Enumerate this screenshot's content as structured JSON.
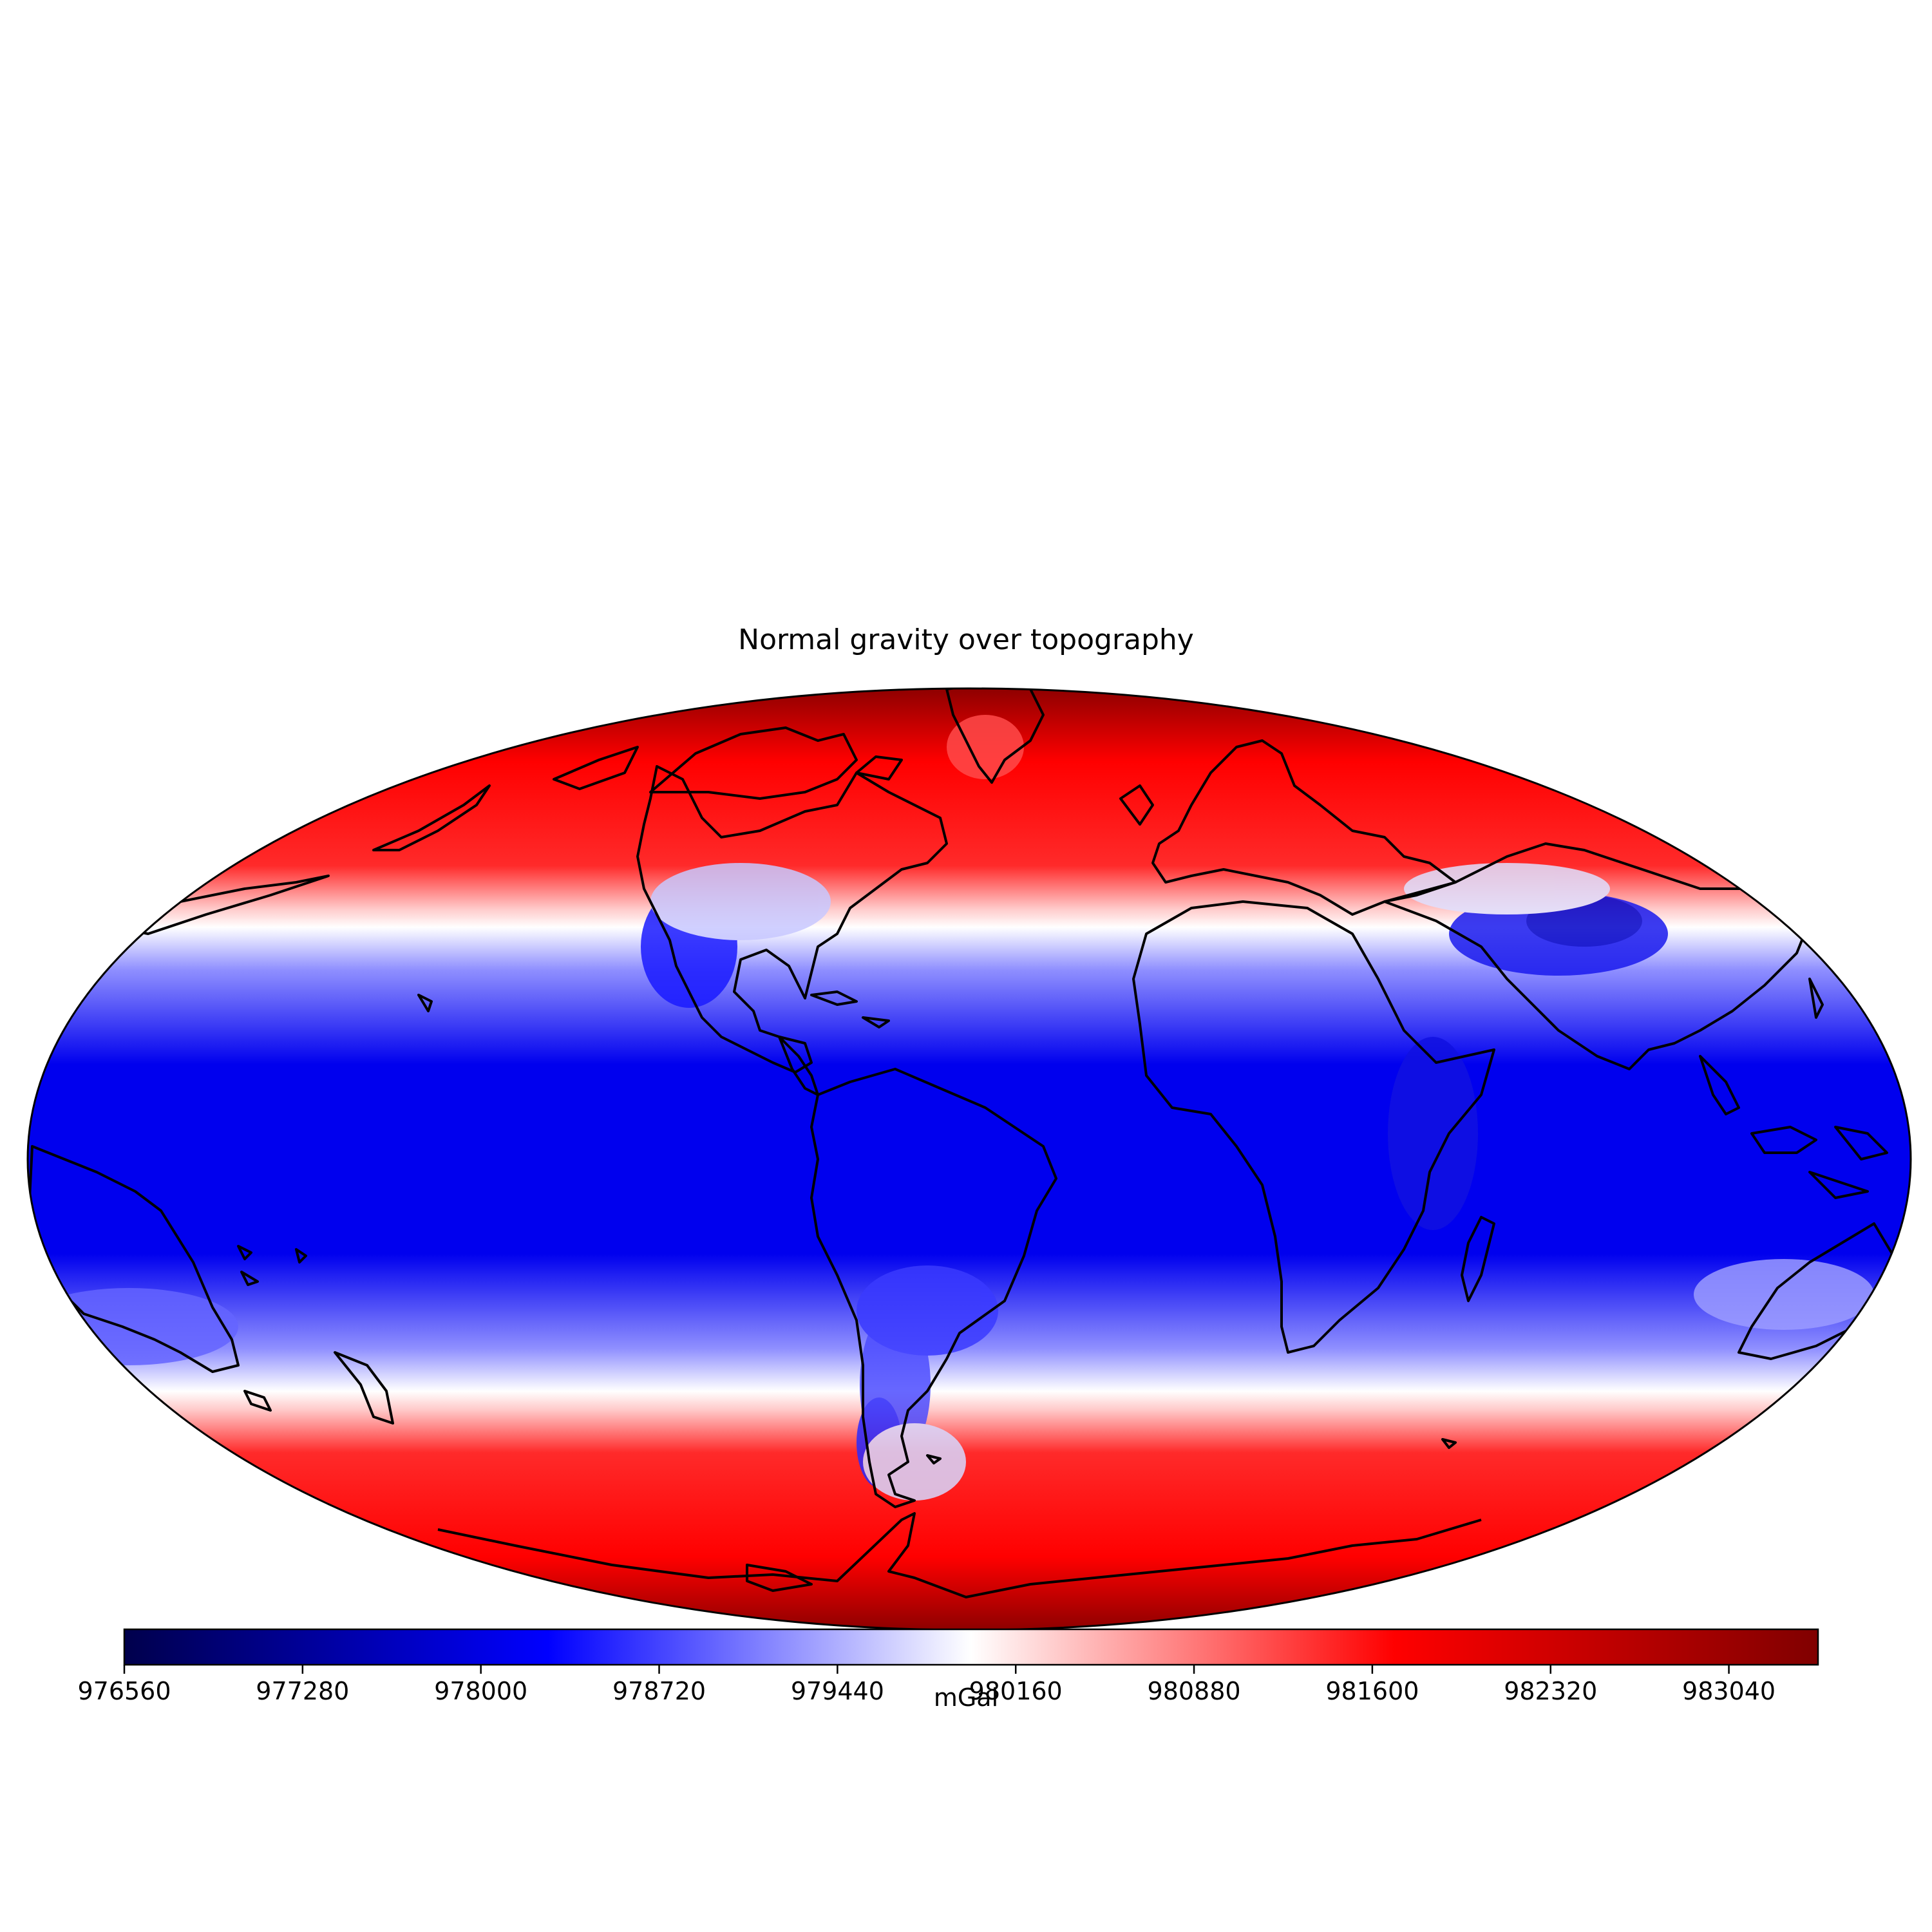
{
  "map": {
    "title": "Normal gravity over topography",
    "projection": "mollweide",
    "quantity": "normal gravity",
    "colormap": "seismic",
    "value_pattern": "minimum near the equator, rising toward both poles; continental highlands (Andes, Rockies, Tibetan Plateau, East Africa) show lower values than surrounding lowlands",
    "colors": {
      "low": "#00004c",
      "mid_low": "#0000ff",
      "neutral": "#ffffff",
      "mid_high": "#ff0000",
      "high": "#800000",
      "coastline": "#000000"
    },
    "features": [
      "coastlines"
    ]
  },
  "colorbar": {
    "label": "mGal",
    "orientation": "horizontal",
    "vmin": 976560,
    "vmax": 983400,
    "ticks": [
      "976560",
      "977280",
      "978000",
      "978720",
      "979440",
      "980160",
      "980880",
      "981600",
      "982320",
      "983040"
    ]
  }
}
